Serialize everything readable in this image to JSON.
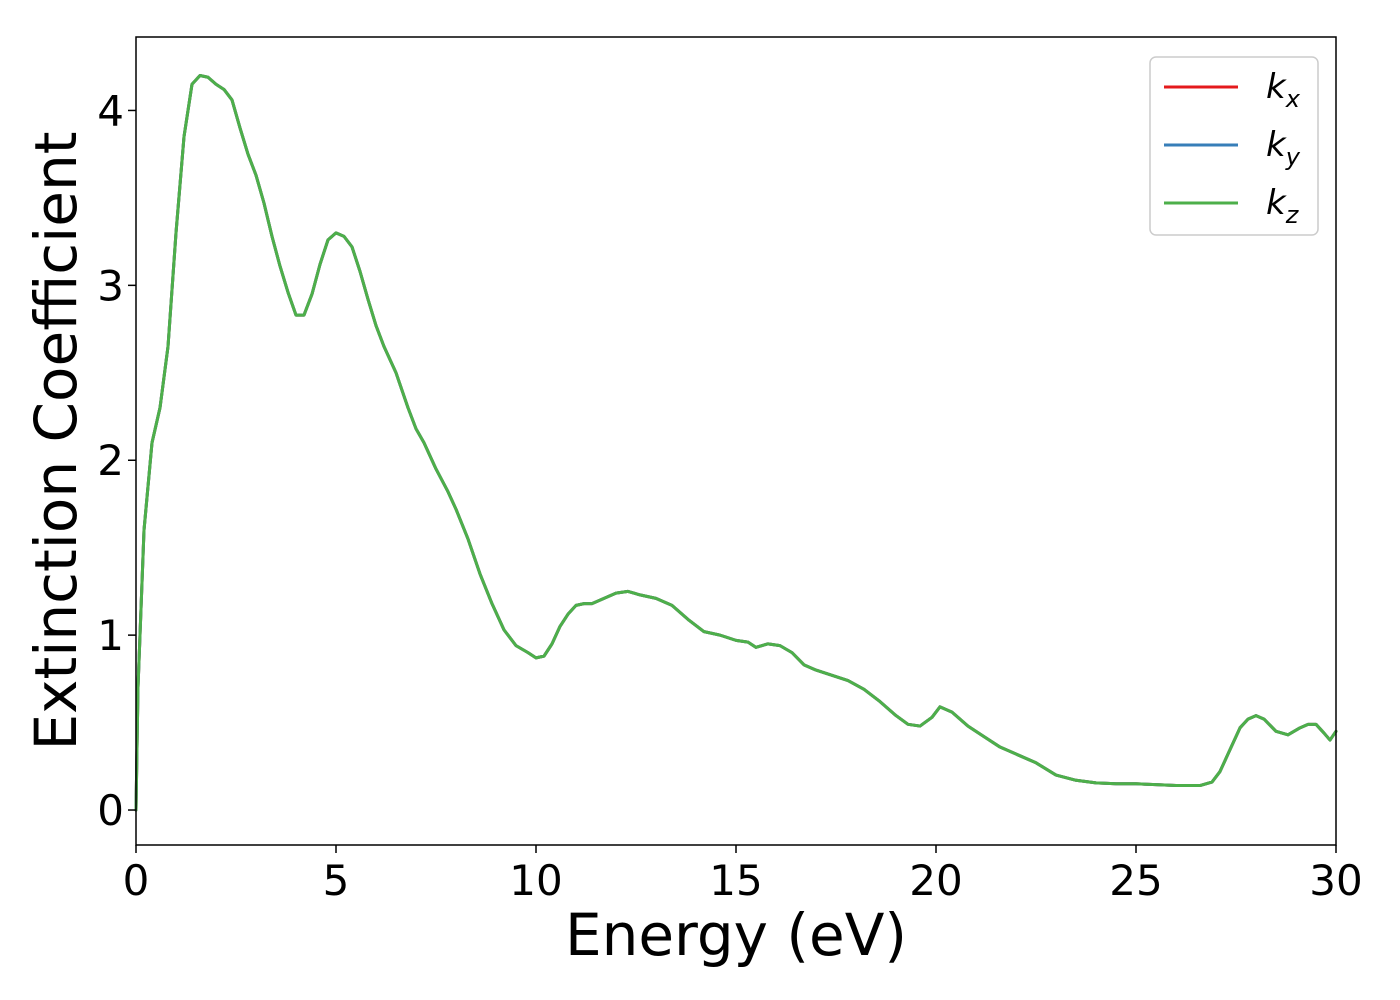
{
  "chart_data": {
    "type": "line",
    "title": "",
    "xlabel": "Energy (eV)",
    "ylabel": "Extinction Coefficient",
    "xlim": [
      0,
      30
    ],
    "ylim": [
      -0.2,
      4.42
    ],
    "xticks": [
      0,
      5,
      10,
      15,
      20,
      25,
      30
    ],
    "yticks": [
      0,
      1,
      2,
      3,
      4
    ],
    "grid": false,
    "legend_position": "top-right",
    "x": [
      0,
      0.05,
      0.2,
      0.4,
      0.6,
      0.8,
      1.0,
      1.2,
      1.4,
      1.6,
      1.8,
      2.0,
      2.2,
      2.4,
      2.6,
      2.8,
      3.0,
      3.2,
      3.4,
      3.6,
      3.8,
      4.0,
      4.2,
      4.4,
      4.6,
      4.8,
      5.0,
      5.2,
      5.4,
      5.6,
      5.8,
      6.0,
      6.2,
      6.5,
      6.8,
      7.0,
      7.2,
      7.5,
      7.8,
      8.0,
      8.3,
      8.6,
      8.9,
      9.2,
      9.5,
      9.8,
      10.0,
      10.2,
      10.4,
      10.6,
      10.8,
      11.0,
      11.2,
      11.4,
      11.6,
      11.8,
      12.0,
      12.3,
      12.6,
      13.0,
      13.4,
      13.8,
      14.2,
      14.6,
      15.0,
      15.3,
      15.5,
      15.8,
      16.1,
      16.4,
      16.7,
      17.0,
      17.4,
      17.8,
      18.2,
      18.6,
      19.0,
      19.3,
      19.6,
      19.9,
      20.1,
      20.4,
      20.8,
      21.2,
      21.6,
      22.0,
      22.5,
      23.0,
      23.5,
      24.0,
      24.5,
      25.0,
      25.5,
      26.0,
      26.3,
      26.6,
      26.9,
      27.1,
      27.3,
      27.6,
      27.8,
      28.0,
      28.2,
      28.5,
      28.8,
      29.1,
      29.3,
      29.5,
      29.7,
      29.85,
      30.0
    ],
    "series": [
      {
        "name": "k_x",
        "color": "#e41a1c",
        "values": [
          0.0,
          0.7,
          1.6,
          2.1,
          2.3,
          2.65,
          3.3,
          3.85,
          4.15,
          4.2,
          4.19,
          4.15,
          4.12,
          4.06,
          3.9,
          3.75,
          3.63,
          3.47,
          3.28,
          3.11,
          2.96,
          2.83,
          2.83,
          2.95,
          3.12,
          3.26,
          3.3,
          3.28,
          3.22,
          3.08,
          2.92,
          2.77,
          2.65,
          2.5,
          2.3,
          2.18,
          2.1,
          1.95,
          1.82,
          1.72,
          1.55,
          1.35,
          1.18,
          1.03,
          0.94,
          0.9,
          0.87,
          0.88,
          0.95,
          1.05,
          1.12,
          1.17,
          1.18,
          1.18,
          1.2,
          1.22,
          1.24,
          1.25,
          1.23,
          1.21,
          1.17,
          1.09,
          1.02,
          1.0,
          0.97,
          0.96,
          0.93,
          0.95,
          0.94,
          0.9,
          0.83,
          0.8,
          0.77,
          0.74,
          0.69,
          0.62,
          0.54,
          0.49,
          0.48,
          0.53,
          0.59,
          0.56,
          0.48,
          0.42,
          0.36,
          0.32,
          0.27,
          0.2,
          0.17,
          0.155,
          0.15,
          0.15,
          0.145,
          0.14,
          0.14,
          0.14,
          0.16,
          0.22,
          0.32,
          0.47,
          0.52,
          0.54,
          0.52,
          0.45,
          0.43,
          0.47,
          0.49,
          0.49,
          0.44,
          0.4,
          0.45
        ]
      },
      {
        "name": "k_y",
        "color": "#377eb8",
        "values": [
          0.0,
          0.7,
          1.6,
          2.1,
          2.3,
          2.65,
          3.3,
          3.85,
          4.15,
          4.2,
          4.19,
          4.15,
          4.12,
          4.06,
          3.9,
          3.75,
          3.63,
          3.47,
          3.28,
          3.11,
          2.96,
          2.83,
          2.83,
          2.95,
          3.12,
          3.26,
          3.3,
          3.28,
          3.22,
          3.08,
          2.92,
          2.77,
          2.65,
          2.5,
          2.3,
          2.18,
          2.1,
          1.95,
          1.82,
          1.72,
          1.55,
          1.35,
          1.18,
          1.03,
          0.94,
          0.9,
          0.87,
          0.88,
          0.95,
          1.05,
          1.12,
          1.17,
          1.18,
          1.18,
          1.2,
          1.22,
          1.24,
          1.25,
          1.23,
          1.21,
          1.17,
          1.09,
          1.02,
          1.0,
          0.97,
          0.96,
          0.93,
          0.95,
          0.94,
          0.9,
          0.83,
          0.8,
          0.77,
          0.74,
          0.69,
          0.62,
          0.54,
          0.49,
          0.48,
          0.53,
          0.59,
          0.56,
          0.48,
          0.42,
          0.36,
          0.32,
          0.27,
          0.2,
          0.17,
          0.155,
          0.15,
          0.15,
          0.145,
          0.14,
          0.14,
          0.14,
          0.16,
          0.22,
          0.32,
          0.47,
          0.52,
          0.54,
          0.52,
          0.45,
          0.43,
          0.47,
          0.49,
          0.49,
          0.44,
          0.4,
          0.45
        ]
      },
      {
        "name": "k_z",
        "color": "#4daf4a",
        "values": [
          0.0,
          0.7,
          1.6,
          2.1,
          2.3,
          2.65,
          3.3,
          3.85,
          4.15,
          4.2,
          4.19,
          4.15,
          4.12,
          4.06,
          3.9,
          3.75,
          3.63,
          3.47,
          3.28,
          3.11,
          2.96,
          2.83,
          2.83,
          2.95,
          3.12,
          3.26,
          3.3,
          3.28,
          3.22,
          3.08,
          2.92,
          2.77,
          2.65,
          2.5,
          2.3,
          2.18,
          2.1,
          1.95,
          1.82,
          1.72,
          1.55,
          1.35,
          1.18,
          1.03,
          0.94,
          0.9,
          0.87,
          0.88,
          0.95,
          1.05,
          1.12,
          1.17,
          1.18,
          1.18,
          1.2,
          1.22,
          1.24,
          1.25,
          1.23,
          1.21,
          1.17,
          1.09,
          1.02,
          1.0,
          0.97,
          0.96,
          0.93,
          0.95,
          0.94,
          0.9,
          0.83,
          0.8,
          0.77,
          0.74,
          0.69,
          0.62,
          0.54,
          0.49,
          0.48,
          0.53,
          0.59,
          0.56,
          0.48,
          0.42,
          0.36,
          0.32,
          0.27,
          0.2,
          0.17,
          0.155,
          0.15,
          0.15,
          0.145,
          0.14,
          0.14,
          0.14,
          0.16,
          0.22,
          0.32,
          0.47,
          0.52,
          0.54,
          0.52,
          0.45,
          0.43,
          0.47,
          0.49,
          0.49,
          0.44,
          0.4,
          0.45
        ]
      }
    ],
    "legend": [
      {
        "base": "k",
        "sub": "x",
        "color": "#e41a1c"
      },
      {
        "base": "k",
        "sub": "y",
        "color": "#377eb8"
      },
      {
        "base": "k",
        "sub": "z",
        "color": "#4daf4a"
      }
    ]
  }
}
